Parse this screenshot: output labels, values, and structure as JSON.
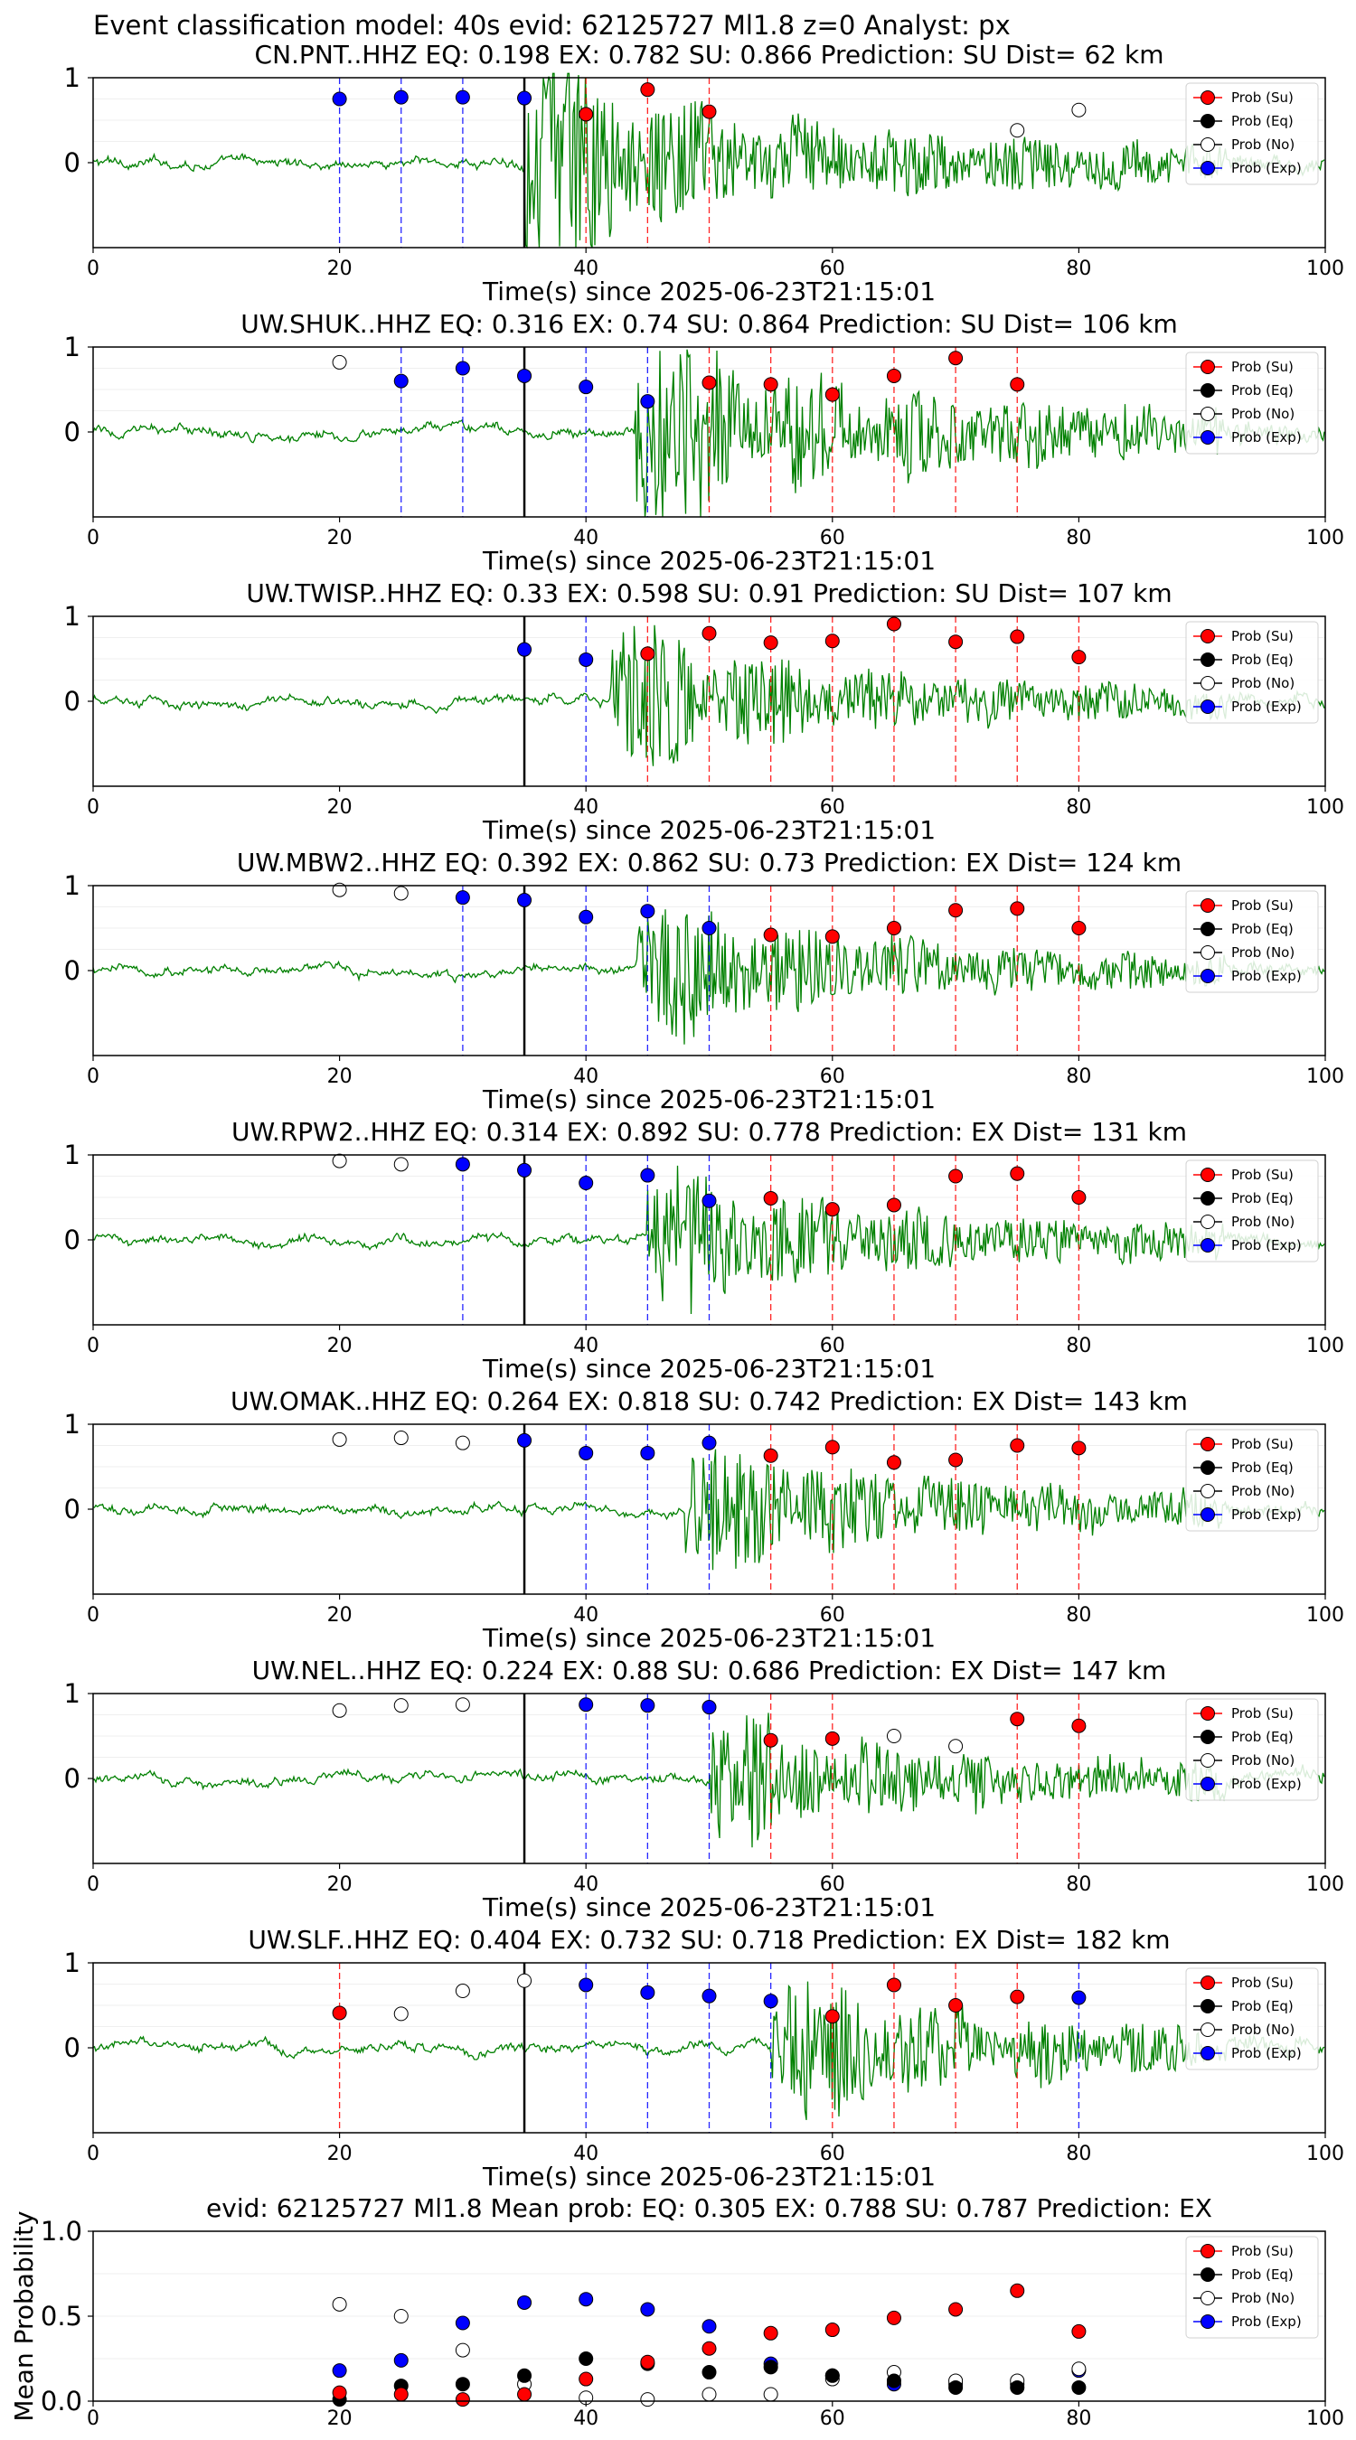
{
  "header": {
    "title": "Event classification model: 40s evid: 62125727 Ml1.8 z=0 Analyst: px"
  },
  "legend_labels": [
    "Prob (Su)",
    "Prob (Eq)",
    "Prob (No)",
    "Prob (Exp)"
  ],
  "colors": {
    "waveform": "#008000",
    "su": "#ff0000",
    "eq": "#000000",
    "no": "#ffffff",
    "exp": "#0000ff",
    "pick": "#000000"
  },
  "chart_data": [
    {
      "type": "scatter",
      "station": "CN.PNT..HHZ",
      "title": "CN.PNT..HHZ   EQ: 0.198  EX: 0.782  SU: 0.866   Prediction: SU    Dist= 62 km",
      "xlabel": "Time(s) since 2025-06-23T21:15:01",
      "xlim": [
        0,
        100
      ],
      "xticks": [
        0,
        20,
        40,
        60,
        80,
        100
      ],
      "yticks": [
        0,
        1
      ],
      "pick_time": 35,
      "onset": 35,
      "amp": 1.45,
      "blue_lines": [
        20,
        25,
        30
      ],
      "red_lines": [
        40,
        45,
        50
      ],
      "points": [
        {
          "x": 20,
          "y": 0.75,
          "class": "Exp"
        },
        {
          "x": 25,
          "y": 0.77,
          "class": "Exp"
        },
        {
          "x": 30,
          "y": 0.77,
          "class": "Exp"
        },
        {
          "x": 35,
          "y": 0.76,
          "class": "Exp"
        },
        {
          "x": 40,
          "y": 0.57,
          "class": "Su"
        },
        {
          "x": 45,
          "y": 0.86,
          "class": "Su"
        },
        {
          "x": 50,
          "y": 0.6,
          "class": "Su"
        },
        {
          "x": 75,
          "y": 0.38,
          "class": "No"
        },
        {
          "x": 80,
          "y": 0.62,
          "class": "No"
        }
      ]
    },
    {
      "type": "scatter",
      "station": "UW.SHUK..HHZ",
      "title": "UW.SHUK..HHZ   EQ: 0.316  EX: 0.74  SU: 0.864   Prediction: SU    Dist= 106 km",
      "xlabel": "Time(s) since 2025-06-23T21:15:01",
      "xlim": [
        0,
        100
      ],
      "xticks": [
        0,
        20,
        40,
        60,
        80,
        100
      ],
      "yticks": [
        0,
        1
      ],
      "pick_time": 35,
      "onset": 44,
      "amp": 1.5,
      "blue_lines": [
        25,
        30,
        35,
        40,
        45
      ],
      "red_lines": [
        50,
        55,
        60,
        65,
        70,
        75
      ],
      "points": [
        {
          "x": 20,
          "y": 0.82,
          "class": "No"
        },
        {
          "x": 25,
          "y": 0.6,
          "class": "Exp"
        },
        {
          "x": 30,
          "y": 0.75,
          "class": "Exp"
        },
        {
          "x": 35,
          "y": 0.66,
          "class": "Exp"
        },
        {
          "x": 40,
          "y": 0.53,
          "class": "Exp"
        },
        {
          "x": 45,
          "y": 0.36,
          "class": "Exp"
        },
        {
          "x": 50,
          "y": 0.58,
          "class": "Su"
        },
        {
          "x": 55,
          "y": 0.56,
          "class": "Su"
        },
        {
          "x": 60,
          "y": 0.44,
          "class": "Su"
        },
        {
          "x": 65,
          "y": 0.66,
          "class": "Su"
        },
        {
          "x": 70,
          "y": 0.87,
          "class": "Su"
        },
        {
          "x": 75,
          "y": 0.56,
          "class": "Su"
        }
      ]
    },
    {
      "type": "scatter",
      "station": "UW.TWISP..HHZ",
      "title": "UW.TWISP..HHZ   EQ: 0.33  EX: 0.598  SU: 0.91   Prediction: SU    Dist= 107 km",
      "xlabel": "Time(s) since 2025-06-23T21:15:01",
      "xlim": [
        0,
        100
      ],
      "xticks": [
        0,
        20,
        40,
        60,
        80,
        100
      ],
      "yticks": [
        0,
        1
      ],
      "pick_time": 35,
      "onset": 42,
      "amp": 1.05,
      "blue_lines": [
        40
      ],
      "red_lines": [
        45,
        50,
        55,
        60,
        65,
        70,
        75,
        80
      ],
      "points": [
        {
          "x": 35,
          "y": 0.61,
          "class": "Exp"
        },
        {
          "x": 40,
          "y": 0.49,
          "class": "Exp"
        },
        {
          "x": 45,
          "y": 0.56,
          "class": "Su"
        },
        {
          "x": 50,
          "y": 0.8,
          "class": "Su"
        },
        {
          "x": 55,
          "y": 0.69,
          "class": "Su"
        },
        {
          "x": 60,
          "y": 0.71,
          "class": "Su"
        },
        {
          "x": 65,
          "y": 0.91,
          "class": "Su"
        },
        {
          "x": 70,
          "y": 0.7,
          "class": "Su"
        },
        {
          "x": 75,
          "y": 0.76,
          "class": "Su"
        },
        {
          "x": 80,
          "y": 0.52,
          "class": "Su"
        }
      ]
    },
    {
      "type": "scatter",
      "station": "UW.MBW2..HHZ",
      "title": "UW.MBW2..HHZ   EQ: 0.392  EX: 0.862  SU: 0.73   Prediction: EX    Dist= 124 km",
      "xlabel": "Time(s) since 2025-06-23T21:15:01",
      "xlim": [
        0,
        100
      ],
      "xticks": [
        0,
        20,
        40,
        60,
        80,
        100
      ],
      "yticks": [
        0,
        1
      ],
      "pick_time": 35,
      "onset": 44,
      "amp": 1.0,
      "blue_lines": [
        30,
        40,
        45,
        50
      ],
      "red_lines": [
        55,
        60,
        65,
        70,
        75,
        80
      ],
      "points": [
        {
          "x": 20,
          "y": 0.95,
          "class": "No"
        },
        {
          "x": 25,
          "y": 0.91,
          "class": "No"
        },
        {
          "x": 30,
          "y": 0.86,
          "class": "Exp"
        },
        {
          "x": 35,
          "y": 0.83,
          "class": "Exp"
        },
        {
          "x": 40,
          "y": 0.63,
          "class": "Exp"
        },
        {
          "x": 45,
          "y": 0.7,
          "class": "Exp"
        },
        {
          "x": 50,
          "y": 0.5,
          "class": "Exp"
        },
        {
          "x": 55,
          "y": 0.42,
          "class": "Su"
        },
        {
          "x": 60,
          "y": 0.4,
          "class": "Su"
        },
        {
          "x": 65,
          "y": 0.5,
          "class": "Su"
        },
        {
          "x": 70,
          "y": 0.71,
          "class": "Su"
        },
        {
          "x": 75,
          "y": 0.73,
          "class": "Su"
        },
        {
          "x": 80,
          "y": 0.5,
          "class": "Su"
        }
      ]
    },
    {
      "type": "scatter",
      "station": "UW.RPW2..HHZ",
      "title": "UW.RPW2..HHZ   EQ: 0.314  EX: 0.892  SU: 0.778   Prediction: EX    Dist= 131 km",
      "xlabel": "Time(s) since 2025-06-23T21:15:01",
      "xlim": [
        0,
        100
      ],
      "xticks": [
        0,
        20,
        40,
        60,
        80,
        100
      ],
      "yticks": [
        0,
        1
      ],
      "pick_time": 35,
      "onset": 45,
      "amp": 1.05,
      "blue_lines": [
        30,
        40,
        45,
        50
      ],
      "red_lines": [
        55,
        60,
        65,
        70,
        75,
        80
      ],
      "points": [
        {
          "x": 20,
          "y": 0.93,
          "class": "No"
        },
        {
          "x": 25,
          "y": 0.89,
          "class": "No"
        },
        {
          "x": 30,
          "y": 0.89,
          "class": "Exp"
        },
        {
          "x": 35,
          "y": 0.82,
          "class": "Exp"
        },
        {
          "x": 40,
          "y": 0.67,
          "class": "Exp"
        },
        {
          "x": 45,
          "y": 0.76,
          "class": "Exp"
        },
        {
          "x": 50,
          "y": 0.46,
          "class": "Exp"
        },
        {
          "x": 55,
          "y": 0.49,
          "class": "Su"
        },
        {
          "x": 60,
          "y": 0.36,
          "class": "Su"
        },
        {
          "x": 65,
          "y": 0.41,
          "class": "Su"
        },
        {
          "x": 70,
          "y": 0.75,
          "class": "Su"
        },
        {
          "x": 75,
          "y": 0.78,
          "class": "Su"
        },
        {
          "x": 80,
          "y": 0.5,
          "class": "Su"
        }
      ]
    },
    {
      "type": "scatter",
      "station": "UW.OMAK..HHZ",
      "title": "UW.OMAK..HHZ   EQ: 0.264  EX: 0.818  SU: 0.742   Prediction: EX    Dist= 143 km",
      "xlabel": "Time(s) since 2025-06-23T21:15:01",
      "xlim": [
        0,
        100
      ],
      "xticks": [
        0,
        20,
        40,
        60,
        80,
        100
      ],
      "yticks": [
        0,
        1
      ],
      "pick_time": 35,
      "onset": 48,
      "amp": 1.0,
      "blue_lines": [
        40,
        45,
        50
      ],
      "red_lines": [
        55,
        60,
        65,
        70,
        75,
        80
      ],
      "points": [
        {
          "x": 20,
          "y": 0.82,
          "class": "No"
        },
        {
          "x": 25,
          "y": 0.84,
          "class": "No"
        },
        {
          "x": 30,
          "y": 0.78,
          "class": "No"
        },
        {
          "x": 35,
          "y": 0.81,
          "class": "Exp"
        },
        {
          "x": 40,
          "y": 0.66,
          "class": "Exp"
        },
        {
          "x": 45,
          "y": 0.66,
          "class": "Exp"
        },
        {
          "x": 50,
          "y": 0.78,
          "class": "Exp"
        },
        {
          "x": 55,
          "y": 0.63,
          "class": "Su"
        },
        {
          "x": 60,
          "y": 0.73,
          "class": "Su"
        },
        {
          "x": 65,
          "y": 0.55,
          "class": "Su"
        },
        {
          "x": 70,
          "y": 0.58,
          "class": "Su"
        },
        {
          "x": 75,
          "y": 0.75,
          "class": "Su"
        },
        {
          "x": 80,
          "y": 0.72,
          "class": "Su"
        }
      ]
    },
    {
      "type": "scatter",
      "station": "UW.NEL..HHZ",
      "title": "UW.NEL..HHZ   EQ: 0.224  EX: 0.88  SU: 0.686   Prediction: EX    Dist= 147 km",
      "xlabel": "Time(s) since 2025-06-23T21:15:01",
      "xlim": [
        0,
        100
      ],
      "xticks": [
        0,
        20,
        40,
        60,
        80,
        100
      ],
      "yticks": [
        0,
        1
      ],
      "pick_time": 35,
      "onset": 50,
      "amp": 0.95,
      "blue_lines": [
        40,
        45,
        50
      ],
      "red_lines": [
        55,
        60,
        75,
        80
      ],
      "points": [
        {
          "x": 20,
          "y": 0.8,
          "class": "No"
        },
        {
          "x": 25,
          "y": 0.86,
          "class": "No"
        },
        {
          "x": 30,
          "y": 0.87,
          "class": "No"
        },
        {
          "x": 40,
          "y": 0.87,
          "class": "Exp"
        },
        {
          "x": 45,
          "y": 0.86,
          "class": "Exp"
        },
        {
          "x": 50,
          "y": 0.84,
          "class": "Exp"
        },
        {
          "x": 55,
          "y": 0.45,
          "class": "Su"
        },
        {
          "x": 60,
          "y": 0.47,
          "class": "Su"
        },
        {
          "x": 65,
          "y": 0.5,
          "class": "No"
        },
        {
          "x": 70,
          "y": 0.38,
          "class": "No"
        },
        {
          "x": 75,
          "y": 0.7,
          "class": "Su"
        },
        {
          "x": 80,
          "y": 0.62,
          "class": "Su"
        }
      ]
    },
    {
      "type": "scatter",
      "station": "UW.SLF..HHZ",
      "title": "UW.SLF..HHZ   EQ: 0.404  EX: 0.732  SU: 0.718   Prediction: EX    Dist= 182 km",
      "xlabel": "Time(s) since 2025-06-23T21:15:01",
      "xlim": [
        0,
        100
      ],
      "xticks": [
        0,
        20,
        40,
        60,
        80,
        100
      ],
      "yticks": [
        0,
        1
      ],
      "pick_time": 35,
      "onset": 55,
      "amp": 1.05,
      "blue_lines": [
        40,
        45,
        50,
        55,
        80
      ],
      "red_lines": [
        20,
        60,
        65,
        70,
        75
      ],
      "points": [
        {
          "x": 20,
          "y": 0.41,
          "class": "Su"
        },
        {
          "x": 25,
          "y": 0.4,
          "class": "No"
        },
        {
          "x": 30,
          "y": 0.67,
          "class": "No"
        },
        {
          "x": 35,
          "y": 0.79,
          "class": "No"
        },
        {
          "x": 40,
          "y": 0.74,
          "class": "Exp"
        },
        {
          "x": 45,
          "y": 0.65,
          "class": "Exp"
        },
        {
          "x": 50,
          "y": 0.61,
          "class": "Exp"
        },
        {
          "x": 55,
          "y": 0.55,
          "class": "Exp"
        },
        {
          "x": 60,
          "y": 0.37,
          "class": "Su"
        },
        {
          "x": 65,
          "y": 0.74,
          "class": "Su"
        },
        {
          "x": 70,
          "y": 0.5,
          "class": "Su"
        },
        {
          "x": 75,
          "y": 0.6,
          "class": "Su"
        },
        {
          "x": 80,
          "y": 0.59,
          "class": "Exp"
        }
      ]
    },
    {
      "type": "scatter",
      "station": "mean",
      "title": "evid: 62125727  Ml1.8   Mean prob:   EQ: 0.305  EX: 0.788  SU: 0.787   Prediction: EX",
      "ylabel": "Mean Probability",
      "xlim": [
        0,
        100
      ],
      "ylim": [
        0,
        1
      ],
      "xticks": [
        0,
        20,
        40,
        60,
        80,
        100
      ],
      "yticks": [
        0.0,
        0.5,
        1.0
      ],
      "series": [
        {
          "name": "Prob (Su)",
          "x": [
            20,
            25,
            30,
            35,
            40,
            45,
            50,
            55,
            60,
            65,
            70,
            75,
            80
          ],
          "values": [
            0.05,
            0.04,
            0.01,
            0.04,
            0.13,
            0.23,
            0.31,
            0.4,
            0.42,
            0.49,
            0.54,
            0.65,
            0.41
          ]
        },
        {
          "name": "Prob (Eq)",
          "x": [
            20,
            25,
            30,
            35,
            40,
            45,
            50,
            55,
            60,
            65,
            70,
            75,
            80
          ],
          "values": [
            0.01,
            0.09,
            0.1,
            0.15,
            0.25,
            0.22,
            0.17,
            0.2,
            0.15,
            0.12,
            0.08,
            0.08,
            0.08
          ]
        },
        {
          "name": "Prob (No)",
          "x": [
            20,
            25,
            30,
            35,
            40,
            45,
            50,
            55,
            60,
            65,
            70,
            75,
            80
          ],
          "values": [
            0.57,
            0.5,
            0.3,
            0.1,
            0.02,
            0.01,
            0.04,
            0.04,
            0.13,
            0.17,
            0.12,
            0.12,
            0.19
          ]
        },
        {
          "name": "Prob (Exp)",
          "x": [
            20,
            25,
            30,
            35,
            40,
            45,
            50,
            55,
            60,
            65,
            70,
            75,
            80
          ],
          "values": [
            0.18,
            0.24,
            0.46,
            0.58,
            0.6,
            0.54,
            0.44,
            0.22,
            0.15,
            0.1,
            0.1,
            0.1,
            0.18
          ]
        }
      ]
    }
  ]
}
